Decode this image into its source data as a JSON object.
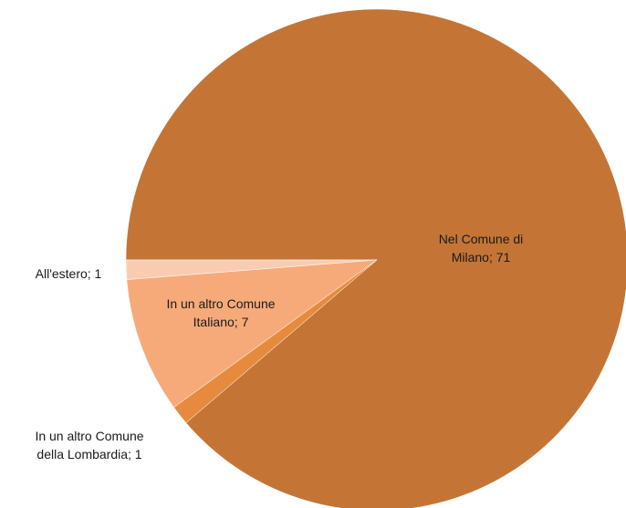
{
  "chart_data": {
    "type": "pie",
    "categories": [
      "Nel Comune di Milano",
      "In un altro Comune della Lombardia",
      "In un altro Comune Italiano",
      "All'estero"
    ],
    "values": [
      71,
      1,
      7,
      1
    ],
    "value_labels": [
      "Nel Comune di Milano; 71",
      "In un altro Comune della Lombardia; 1",
      "In un altro Comune Italiano; 7",
      "All'estero; 1"
    ],
    "colors": [
      "#c47535",
      "#e68b3e",
      "#f6aa7a",
      "#f9ccb2"
    ]
  }
}
